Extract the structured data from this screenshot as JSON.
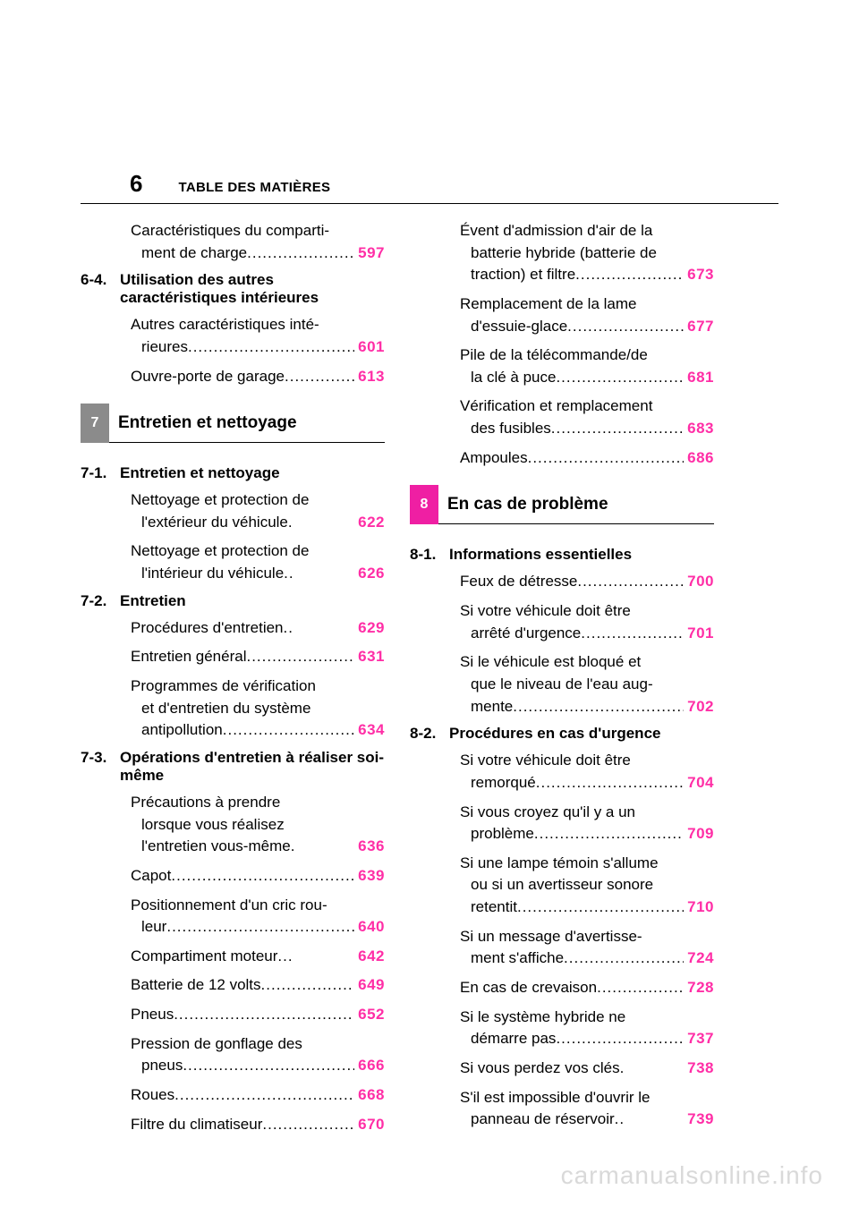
{
  "page_number": "6",
  "header": "TABLE DES MATIÈRES",
  "colors": {
    "page_num_pink": "#ff2ea6",
    "badge_gray": "#8b8b8b",
    "badge_magenta": "#ef1fa3",
    "text": "#000000",
    "bg": "#ffffff",
    "watermark": "#d9d9d9"
  },
  "dots": ".....................................................",
  "left": {
    "items_before_chapter": [
      {
        "lines": [
          "Caractéristiques du comparti-"
        ],
        "last": "ment de charge",
        "page": "597",
        "indent": "sub"
      }
    ],
    "section_6_4": {
      "num": "6-4.",
      "title": "Utilisation des autres caractéristiques intérieures"
    },
    "items_6_4": [
      {
        "lines": [
          "Autres caractéristiques inté-"
        ],
        "last": "rieures",
        "page": "601",
        "indent": "sub"
      },
      {
        "lines": [],
        "last": "Ouvre-porte de garage",
        "page": "613",
        "indent": "sub"
      }
    ],
    "chapter7": {
      "num": "7",
      "label": "Entretien et nettoyage",
      "badge_color": "#8b8b8b"
    },
    "section_7_1": {
      "num": "7-1.",
      "title": "Entretien et nettoyage"
    },
    "items_7_1": [
      {
        "lines": [
          "Nettoyage et protection de"
        ],
        "last": "l'extérieur du véhicule",
        "page": "622",
        "indent": "sub",
        "sep": "."
      },
      {
        "lines": [
          "Nettoyage et protection de"
        ],
        "last": "l'intérieur du véhicule",
        "page": "626",
        "indent": "sub",
        "sep": ".."
      }
    ],
    "section_7_2": {
      "num": "7-2.",
      "title": "Entretien"
    },
    "items_7_2": [
      {
        "lines": [],
        "last": "Procédures d'entretien",
        "page": "629",
        "indent": "sub",
        "sep": ".."
      },
      {
        "lines": [],
        "last": "Entretien général",
        "page": "631",
        "indent": "sub"
      },
      {
        "lines": [
          "Programmes de vérification",
          "et d'entretien du système"
        ],
        "last": "antipollution",
        "page": "634",
        "indent": "sub"
      }
    ],
    "section_7_3": {
      "num": "7-3.",
      "title": "Opérations d'entretien à réaliser soi-même"
    },
    "items_7_3": [
      {
        "lines": [
          "Précautions à prendre",
          "lorsque vous réalisez"
        ],
        "last": "l'entretien vous-même",
        "page": "636",
        "indent": "sub",
        "sep": "."
      },
      {
        "lines": [],
        "last": "Capot",
        "page": "639",
        "indent": "sub"
      },
      {
        "lines": [
          "Positionnement d'un cric rou-"
        ],
        "last": "leur",
        "page": "640",
        "indent": "sub"
      },
      {
        "lines": [],
        "last": "Compartiment moteur",
        "page": "642",
        "indent": "sub",
        "sep": "..."
      },
      {
        "lines": [],
        "last": "Batterie de 12 volts",
        "page": "649",
        "indent": "sub"
      },
      {
        "lines": [],
        "last": "Pneus",
        "page": "652",
        "indent": "sub"
      },
      {
        "lines": [
          "Pression de gonflage des"
        ],
        "last": "pneus",
        "page": "666",
        "indent": "sub"
      },
      {
        "lines": [],
        "last": "Roues",
        "page": "668",
        "indent": "sub"
      },
      {
        "lines": [],
        "last": "Filtre du climatiseur",
        "page": "670",
        "indent": "sub"
      }
    ]
  },
  "right": {
    "items_top": [
      {
        "lines": [
          "Évent d'admission d'air de la",
          "batterie hybride (batterie de"
        ],
        "last": "traction) et filtre",
        "page": "673",
        "indent": "sub"
      },
      {
        "lines": [
          "Remplacement de la lame"
        ],
        "last": "d'essuie-glace",
        "page": "677",
        "indent": "sub"
      },
      {
        "lines": [
          "Pile de la télécommande/de"
        ],
        "last": "la clé à puce",
        "page": "681",
        "indent": "sub"
      },
      {
        "lines": [
          "Vérification et remplacement"
        ],
        "last": "des fusibles",
        "page": "683",
        "indent": "sub"
      },
      {
        "lines": [],
        "last": "Ampoules",
        "page": "686",
        "indent": "sub"
      }
    ],
    "chapter8": {
      "num": "8",
      "label": "En cas de problème",
      "badge_color": "#ef1fa3"
    },
    "section_8_1": {
      "num": "8-1.",
      "title": "Informations essentielles"
    },
    "items_8_1": [
      {
        "lines": [],
        "last": "Feux de détresse",
        "page": "700",
        "indent": "sub"
      },
      {
        "lines": [
          "Si votre véhicule doit être"
        ],
        "last": "arrêté d'urgence",
        "page": "701",
        "indent": "sub"
      },
      {
        "lines": [
          "Si le véhicule est bloqué et",
          "que le niveau de l'eau aug-"
        ],
        "last": "mente",
        "page": "702",
        "indent": "sub"
      }
    ],
    "section_8_2": {
      "num": "8-2.",
      "title": "Procédures en cas d'urgence"
    },
    "items_8_2": [
      {
        "lines": [
          "Si votre véhicule doit être"
        ],
        "last": "remorqué",
        "page": "704",
        "indent": "sub"
      },
      {
        "lines": [
          "Si vous croyez qu'il y a un"
        ],
        "last": "problème",
        "page": "709",
        "indent": "sub"
      },
      {
        "lines": [
          "Si une lampe témoin s'allume",
          "ou si un avertisseur sonore"
        ],
        "last": "retentit",
        "page": "710",
        "indent": "sub"
      },
      {
        "lines": [
          "Si un message d'avertisse-"
        ],
        "last": "ment s'affiche",
        "page": "724",
        "indent": "sub"
      },
      {
        "lines": [],
        "last": "En cas de crevaison",
        "page": "728",
        "indent": "sub"
      },
      {
        "lines": [
          "Si le système hybride ne"
        ],
        "last": "démarre pas",
        "page": "737",
        "indent": "sub"
      },
      {
        "lines": [],
        "last": "Si vous perdez vos clés",
        "page": "738",
        "indent": "sub",
        "sep": "."
      },
      {
        "lines": [
          "S'il est impossible d'ouvrir le"
        ],
        "last": "panneau de réservoir",
        "page": "739",
        "indent": "sub",
        "sep": ".."
      }
    ]
  },
  "watermark": "carmanualsonline.info"
}
